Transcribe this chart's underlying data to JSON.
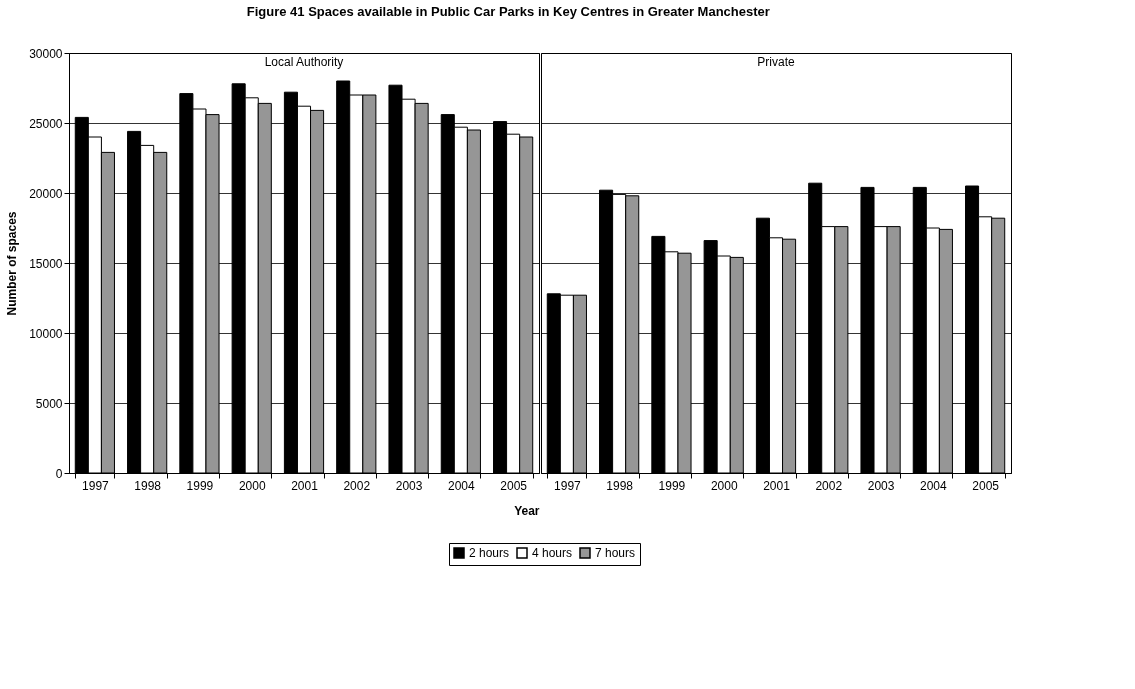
{
  "chart_data": [
    {
      "type": "bar",
      "title": "Figure 41 Spaces available in Public Car Parks in Key Centres in Greater Manchester",
      "ylabel": "Number of spaces",
      "xlabel": "Year",
      "annotations": [
        "Local Authority"
      ],
      "categories": [
        "1997",
        "1998",
        "1999",
        "2000",
        "2001",
        "2002",
        "2003",
        "2004",
        "2005"
      ],
      "ylim": [
        0,
        30000
      ],
      "yticks": [
        0,
        5000,
        10000,
        15000,
        20000,
        25000,
        30000
      ],
      "grid": "y",
      "legend": "bottom",
      "series": [
        {
          "name": "2 hours",
          "color": "#000000",
          "values": [
            25400,
            24400,
            27100,
            27800,
            27200,
            28000,
            27700,
            25600,
            25100
          ]
        },
        {
          "name": "4 hours",
          "color": "#ffffff",
          "values": [
            24000,
            23400,
            26000,
            26800,
            26200,
            27000,
            26700,
            24700,
            24200
          ]
        },
        {
          "name": "7 hours",
          "color": "#969696",
          "values": [
            22900,
            22900,
            25600,
            26400,
            25900,
            27000,
            26400,
            24500,
            24000
          ]
        }
      ]
    },
    {
      "type": "bar",
      "annotations": [
        "Private"
      ],
      "categories": [
        "1997",
        "1998",
        "1999",
        "2000",
        "2001",
        "2002",
        "2003",
        "2004",
        "2005"
      ],
      "ylim": [
        0,
        30000
      ],
      "yticks": [
        0,
        5000,
        10000,
        15000,
        20000,
        25000,
        30000
      ],
      "grid": "y",
      "tick_labels": "x",
      "series": [
        {
          "name": "2 hours",
          "color": "#000000",
          "values": [
            12800,
            20200,
            16900,
            16600,
            18200,
            20700,
            20400,
            20400,
            20500
          ]
        },
        {
          "name": "4 hours",
          "color": "#ffffff",
          "values": [
            12700,
            19900,
            15800,
            15500,
            16800,
            17600,
            17600,
            17500,
            18300
          ]
        },
        {
          "name": "7 hours",
          "color": "#969696",
          "values": [
            12700,
            19800,
            15700,
            15400,
            16700,
            17600,
            17600,
            17400,
            18200
          ]
        }
      ]
    }
  ]
}
